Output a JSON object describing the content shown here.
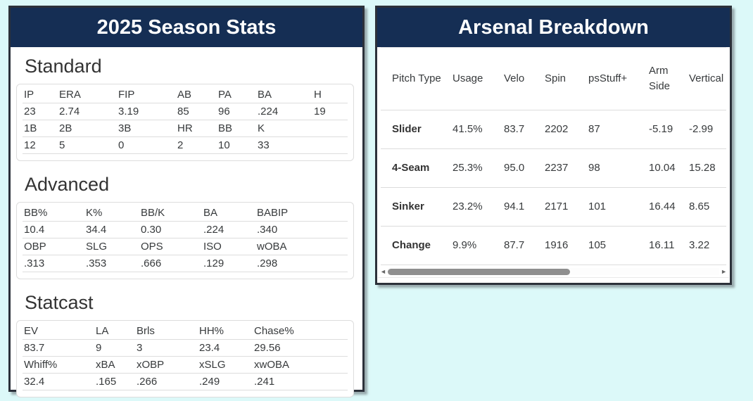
{
  "colors": {
    "page_background": "#dcf9f9",
    "header_navy": "#152e54",
    "panel_border": "#2c313a",
    "table_text": "#373a3c",
    "row_divider": "#dddddd",
    "scroll_thumb": "#8f8f8f"
  },
  "season_stats": {
    "title": "2025 Season Stats",
    "sections": [
      {
        "heading": "Standard",
        "rows": [
          [
            "IP",
            "ERA",
            "FIP",
            "AB",
            "PA",
            "BA",
            "H"
          ],
          [
            "23",
            "2.74",
            "3.19",
            "85",
            "96",
            ".224",
            "19"
          ],
          [
            "1B",
            "2B",
            "3B",
            "HR",
            "BB",
            "K",
            ""
          ],
          [
            "12",
            "5",
            "0",
            "2",
            "10",
            "33",
            ""
          ]
        ]
      },
      {
        "heading": "Advanced",
        "rows": [
          [
            "BB%",
            "K%",
            "BB/K",
            "BA",
            "BABIP"
          ],
          [
            "10.4",
            "34.4",
            "0.30",
            ".224",
            ".340"
          ],
          [
            "OBP",
            "SLG",
            "OPS",
            "ISO",
            "wOBA"
          ],
          [
            ".313",
            ".353",
            ".666",
            ".129",
            ".298"
          ]
        ]
      },
      {
        "heading": "Statcast",
        "rows": [
          [
            "EV",
            "LA",
            "Brls",
            "HH%",
            "Chase%"
          ],
          [
            "83.7",
            "9",
            "3",
            "23.4",
            "29.56"
          ],
          [
            "Whiff%",
            "xBA",
            "xOBP",
            "xSLG",
            "xwOBA"
          ],
          [
            "32.4",
            ".165",
            ".266",
            ".249",
            ".241"
          ]
        ]
      }
    ]
  },
  "arsenal": {
    "title": "Arsenal Breakdown",
    "columns": [
      "Pitch Type",
      "Usage",
      "Velo",
      "Spin",
      "psStuff+",
      "Arm Side",
      "Vertical"
    ],
    "rows": [
      [
        "Slider",
        "41.5%",
        "83.7",
        "2202",
        "87",
        "-5.19",
        "-2.99"
      ],
      [
        "4-Seam",
        "25.3%",
        "95.0",
        "2237",
        "98",
        "10.04",
        "15.28"
      ],
      [
        "Sinker",
        "23.2%",
        "94.1",
        "2171",
        "101",
        "16.44",
        "8.65"
      ],
      [
        "Change",
        "9.9%",
        "87.7",
        "1916",
        "105",
        "16.11",
        "3.22"
      ]
    ],
    "scrollbar": {
      "left_arrow": "◄",
      "right_arrow": "►"
    }
  }
}
